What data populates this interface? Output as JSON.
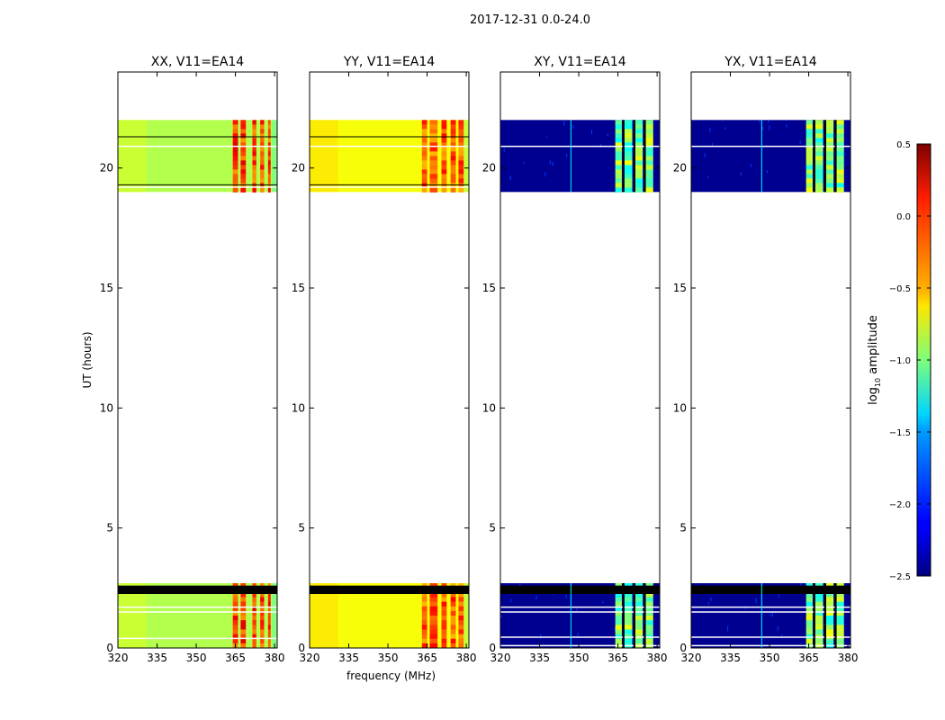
{
  "figure": {
    "suptitle": "2017-12-31 0.0-24.0"
  },
  "colors": {
    "no_data": "#ffffff",
    "flagged": "#000000",
    "frame": "#000000"
  },
  "chart_data": [
    {
      "type": "heatmap",
      "title": "XX, V11=EA14",
      "xlabel": "",
      "ylabel": "UT (hours)",
      "xlim": [
        320,
        381
      ],
      "ylim": [
        0,
        24
      ],
      "xticks": [
        320,
        335,
        350,
        365,
        380
      ],
      "yticks": [
        0,
        5,
        10,
        15,
        20
      ],
      "data_blocks_hours": [
        [
          0,
          2.7
        ],
        [
          19.0,
          22.0
        ]
      ],
      "flagged_bands_hours": [
        [
          2.25,
          2.6
        ]
      ],
      "thin_lines_hours": [
        19.3,
        21.3
      ],
      "white_lines_hours": [
        0.4,
        1.5,
        1.7,
        19.2,
        20.9
      ],
      "base_level": -0.85,
      "rfi_columns_mhz": [
        [
          364,
          366
        ],
        [
          367,
          369
        ],
        [
          371.5,
          373
        ],
        [
          374.5,
          376
        ],
        [
          377.5,
          378.5
        ]
      ],
      "rfi_level": -0.05
    },
    {
      "type": "heatmap",
      "title": "YY, V11=EA14",
      "xlabel": "frequency (MHz)",
      "ylabel": "",
      "xlim": [
        320,
        381
      ],
      "ylim": [
        0,
        24
      ],
      "xticks": [
        320,
        335,
        350,
        365,
        380
      ],
      "yticks": [
        0,
        5,
        10,
        15,
        20
      ],
      "data_blocks_hours": [
        [
          0,
          2.7
        ],
        [
          19.0,
          22.0
        ]
      ],
      "flagged_bands_hours": [
        [
          2.25,
          2.6
        ]
      ],
      "thin_lines_hours": [
        19.3,
        21.3
      ],
      "white_lines_hours": [
        19.2,
        20.9
      ],
      "base_level": -0.65,
      "rfi_columns_mhz": [
        [
          363,
          365
        ],
        [
          366,
          369
        ],
        [
          370.5,
          372.5
        ],
        [
          374,
          376
        ],
        [
          377,
          379
        ]
      ],
      "rfi_level": -0.15
    },
    {
      "type": "heatmap",
      "title": "XY, V11=EA14",
      "xlabel": "",
      "ylabel": "",
      "xlim": [
        320,
        381
      ],
      "ylim": [
        0,
        24
      ],
      "xticks": [
        320,
        335,
        350,
        365,
        380
      ],
      "yticks": [
        0,
        5,
        10,
        15,
        20
      ],
      "data_blocks_hours": [
        [
          0,
          2.7
        ],
        [
          19.0,
          22.0
        ]
      ],
      "flagged_bands_hours": [
        [
          2.25,
          2.6
        ]
      ],
      "thin_lines_hours": [],
      "white_lines_hours": [
        0.1,
        0.45,
        1.5,
        1.7,
        20.9
      ],
      "base_level": -2.45,
      "rfi_columns_mhz": [
        [
          364,
          366.5
        ],
        [
          367.5,
          370.5
        ],
        [
          371.5,
          374.5
        ],
        [
          375.5,
          378.5
        ]
      ],
      "rfi_level": -1.0
    },
    {
      "type": "heatmap",
      "title": "YX, V11=EA14",
      "xlabel": "",
      "ylabel": "",
      "xlim": [
        320,
        381
      ],
      "ylim": [
        0,
        24
      ],
      "xticks": [
        320,
        335,
        350,
        365,
        380
      ],
      "yticks": [
        0,
        5,
        10,
        15,
        20
      ],
      "data_blocks_hours": [
        [
          0,
          2.7
        ],
        [
          19.0,
          22.0
        ]
      ],
      "flagged_bands_hours": [
        [
          2.25,
          2.6
        ]
      ],
      "thin_lines_hours": [],
      "white_lines_hours": [
        0.1,
        0.45,
        1.5,
        1.7,
        20.9
      ],
      "base_level": -2.45,
      "rfi_columns_mhz": [
        [
          364,
          366.5
        ],
        [
          367.5,
          370.5
        ],
        [
          371.5,
          374.5
        ],
        [
          375.5,
          378.5
        ]
      ],
      "rfi_level": -1.0
    }
  ],
  "colorbar": {
    "label_prefix": "log",
    "label_sub": "10",
    "label_suffix": " amplitude",
    "range": [
      -2.5,
      0.5
    ],
    "ticks": [
      0.5,
      0.0,
      -0.5,
      -1.0,
      -1.5,
      -2.0,
      -2.5
    ],
    "tick_labels": [
      "0.5",
      "0.0",
      "−0.5",
      "−1.0",
      "−1.5",
      "−2.0",
      "−2.5"
    ],
    "colormap": "jet"
  }
}
